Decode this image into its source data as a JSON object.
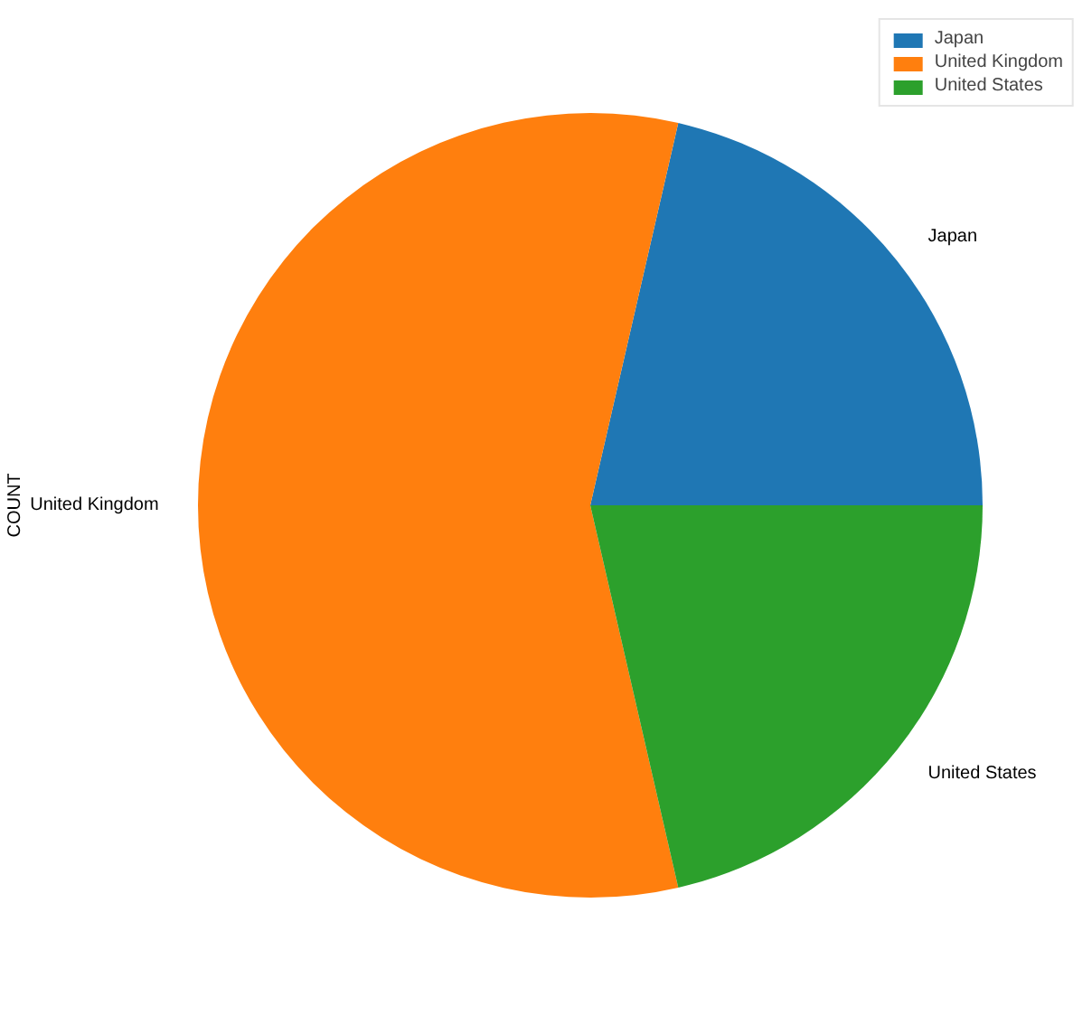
{
  "chart_data": {
    "type": "pie",
    "ylabel": "COUNT",
    "categories": [
      "Japan",
      "United Kingdom",
      "United States"
    ],
    "values": [
      21.4,
      57.2,
      21.4
    ],
    "colors": [
      "#1f77b4",
      "#ff7f0e",
      "#2ca02c"
    ],
    "legend": "top right"
  }
}
